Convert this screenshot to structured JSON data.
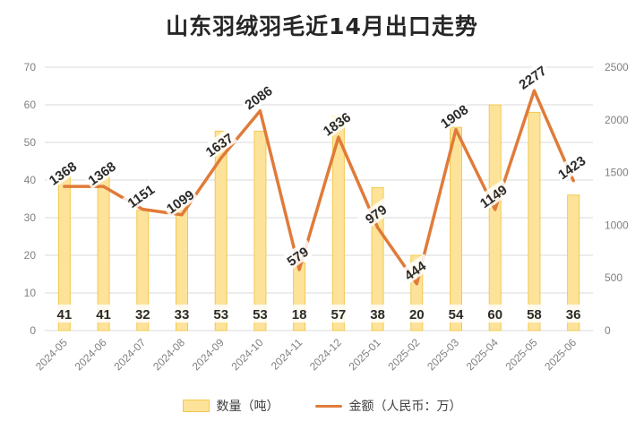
{
  "title": "山东羽绒羽毛近14月出口走势",
  "legend": {
    "bar_label": "数量（吨）",
    "line_label": "金额（人民币：万）"
  },
  "colors": {
    "bar_fill": "#fde39a",
    "bar_stroke": "#f3c84e",
    "line": "#e07b39",
    "grid": "#d9d9d9",
    "axis_text": "#808080"
  },
  "chart_data": {
    "type": "bar+line",
    "categories": [
      "2024-05",
      "2024-06",
      "2024-07",
      "2024-08",
      "2024-09",
      "2024-10",
      "2024-11",
      "2024-12",
      "2025-01",
      "2025-02",
      "2025-03",
      "2025-04",
      "2025-05",
      "2025-06"
    ],
    "series": [
      {
        "name": "数量（吨）",
        "type": "bar",
        "axis": "left",
        "values": [
          41,
          41,
          32,
          33,
          53,
          53,
          18,
          57,
          38,
          20,
          54,
          60,
          58,
          36
        ]
      },
      {
        "name": "金额（人民币：万）",
        "type": "line",
        "axis": "right",
        "values": [
          1368,
          1368,
          1151,
          1099,
          1637,
          2086,
          579,
          1836,
          979,
          444,
          1908,
          1149,
          2277,
          1423
        ]
      }
    ],
    "y_left": {
      "min": 0,
      "max": 70,
      "ticks": [
        0,
        10,
        20,
        30,
        40,
        50,
        60,
        70
      ]
    },
    "y_right": {
      "min": 0,
      "max": 2500,
      "ticks": [
        0,
        500,
        1000,
        1500,
        2000,
        2500
      ]
    },
    "grid": true,
    "legend_position": "bottom"
  }
}
